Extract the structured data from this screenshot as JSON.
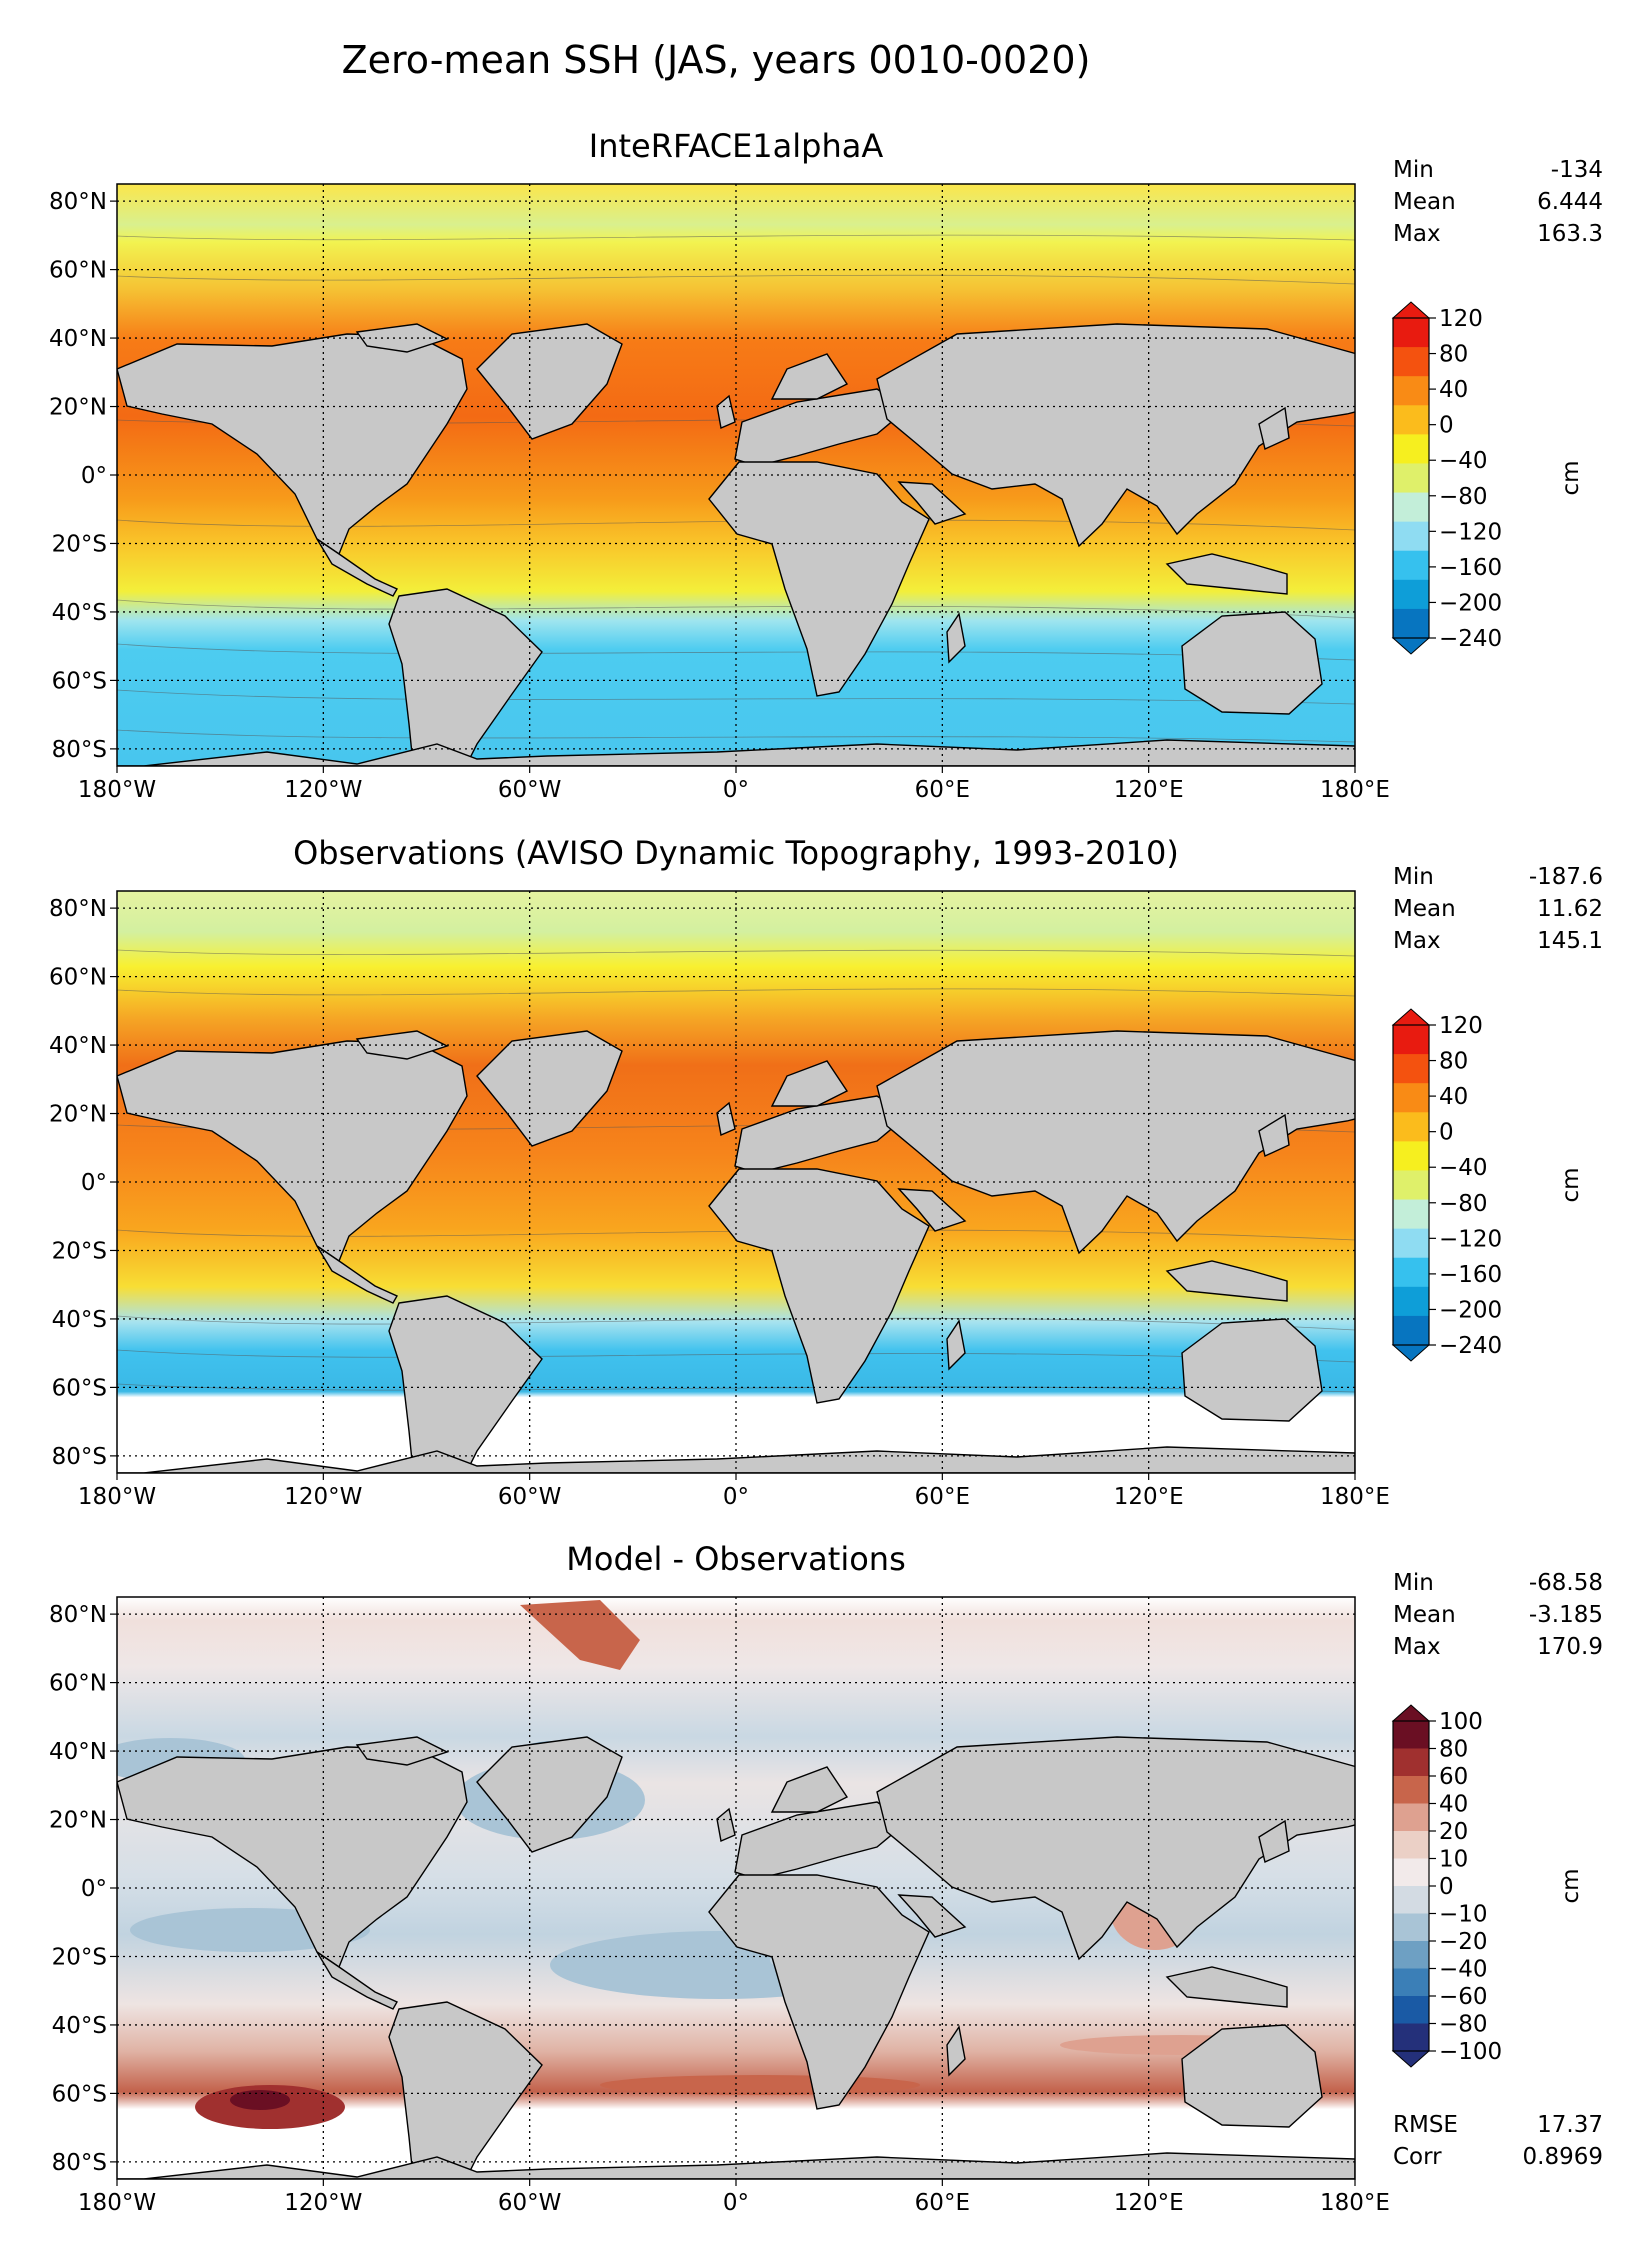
{
  "figure": {
    "title": "Zero-mean SSH (JAS, years 0010-0020)"
  },
  "axes": {
    "lon_ticks": [
      "180°W",
      "120°W",
      "60°W",
      "0°",
      "60°E",
      "120°E",
      "180°E"
    ],
    "lat_ticks": [
      "80°N",
      "60°N",
      "40°N",
      "20°N",
      "0°",
      "20°S",
      "40°S",
      "60°S",
      "80°S"
    ]
  },
  "colors": {
    "land": "#c8c8c8",
    "frame": "#000000"
  },
  "chart_data": [
    {
      "type": "heatmap",
      "title": "InteRFACE1alphaA",
      "stats": [
        {
          "label": "Min",
          "value": "-134"
        },
        {
          "label": "Mean",
          "value": "6.444"
        },
        {
          "label": "Max",
          "value": "163.3"
        }
      ],
      "colorbar": {
        "unit": "cm",
        "ticks": [
          "120",
          "80",
          "40",
          "0",
          "−40",
          "−80",
          "−120",
          "−160",
          "−200",
          "−240"
        ],
        "tick_values": [
          120,
          80,
          40,
          0,
          -40,
          -80,
          -120,
          -160,
          -200,
          -240
        ],
        "range": [
          -240,
          120
        ],
        "extend": "both",
        "colors": [
          "#e81b10",
          "#f4520f",
          "#f98b15",
          "#fbbc1c",
          "#f6ef1f",
          "#dff06a",
          "#c3eed9",
          "#8fdcf2",
          "#36c1ee",
          "#0e9ed8",
          "#0775c0"
        ]
      },
      "xlim": [
        -180,
        180
      ],
      "ylim": [
        -85,
        85
      ]
    },
    {
      "type": "heatmap",
      "title": "Observations (AVISO Dynamic Topography, 1993-2010)",
      "stats": [
        {
          "label": "Min",
          "value": "-187.6"
        },
        {
          "label": "Mean",
          "value": "11.62"
        },
        {
          "label": "Max",
          "value": "145.1"
        }
      ],
      "colorbar": {
        "unit": "cm",
        "ticks": [
          "120",
          "80",
          "40",
          "0",
          "−40",
          "−80",
          "−120",
          "−160",
          "−200",
          "−240"
        ],
        "tick_values": [
          120,
          80,
          40,
          0,
          -40,
          -80,
          -120,
          -160,
          -200,
          -240
        ],
        "range": [
          -240,
          120
        ],
        "extend": "both",
        "colors": [
          "#e81b10",
          "#f4520f",
          "#f98b15",
          "#fbbc1c",
          "#f6ef1f",
          "#dff06a",
          "#c3eed9",
          "#8fdcf2",
          "#36c1ee",
          "#0e9ed8",
          "#0775c0"
        ]
      },
      "xlim": [
        -180,
        180
      ],
      "ylim": [
        -85,
        85
      ]
    },
    {
      "type": "heatmap",
      "title": "Model - Observations",
      "stats": [
        {
          "label": "Min",
          "value": "-68.58"
        },
        {
          "label": "Mean",
          "value": "-3.185"
        },
        {
          "label": "Max",
          "value": "170.9"
        }
      ],
      "metrics": [
        {
          "label": "RMSE",
          "value": "17.37"
        },
        {
          "label": "Corr",
          "value": "0.8969"
        }
      ],
      "colorbar": {
        "unit": "cm",
        "ticks": [
          "100",
          "80",
          "60",
          "40",
          "20",
          "10",
          "0",
          "−10",
          "−20",
          "−40",
          "−60",
          "−80",
          "−100"
        ],
        "tick_values": [
          100,
          80,
          60,
          40,
          20,
          10,
          0,
          -10,
          -20,
          -40,
          -60,
          -80,
          -100
        ],
        "range": [
          -100,
          100
        ],
        "extend": "both",
        "colors": [
          "#6a0f23",
          "#a0302f",
          "#c8654b",
          "#dea190",
          "#ebd0c6",
          "#f2eaea",
          "#d3dbe3",
          "#a9c4d6",
          "#6ea0c3",
          "#3b7fb7",
          "#1a5aa5",
          "#24307a"
        ]
      },
      "xlim": [
        -180,
        180
      ],
      "ylim": [
        -85,
        85
      ]
    }
  ]
}
